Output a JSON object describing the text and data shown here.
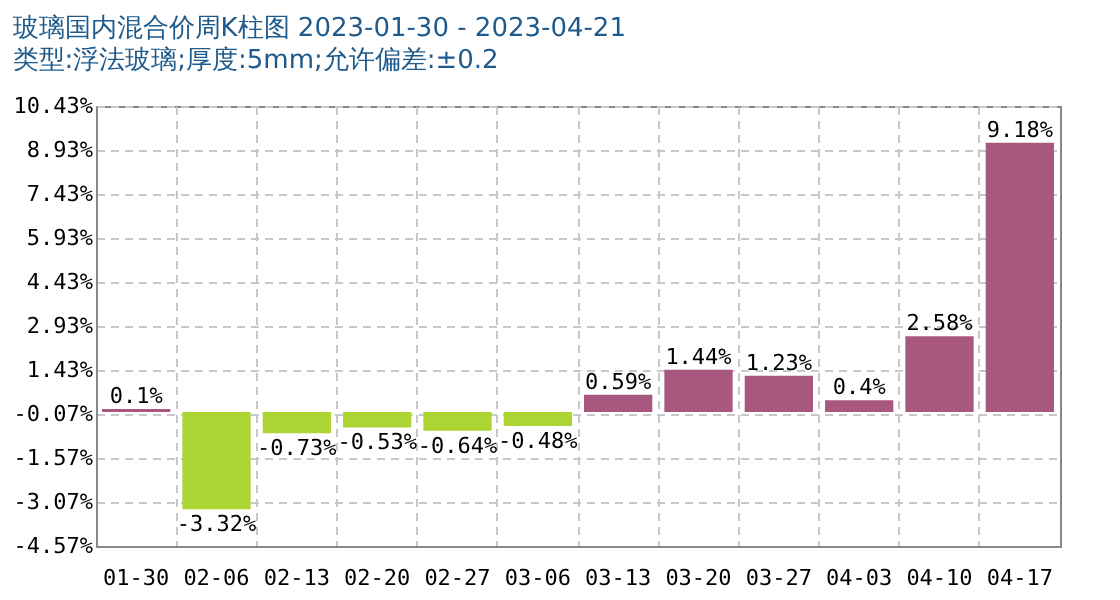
{
  "chart_data": {
    "type": "bar",
    "title": "玻璃国内混合价周K柱图 2023-01-30 - 2023-04-21",
    "subtitle": "类型:浮法玻璃;厚度:5mm;允许偏差:±0.2",
    "categories": [
      "01-30",
      "02-06",
      "02-13",
      "02-20",
      "02-27",
      "03-06",
      "03-13",
      "03-20",
      "03-27",
      "04-03",
      "04-10",
      "04-17"
    ],
    "values": [
      0.1,
      -3.32,
      -0.73,
      -0.53,
      -0.64,
      -0.48,
      0.59,
      1.44,
      1.23,
      0.4,
      2.58,
      9.18
    ],
    "value_labels": [
      "0.1%",
      "-3.32%",
      "-0.73%",
      "-0.53%",
      "-0.64%",
      "-0.48%",
      "0.59%",
      "1.44%",
      "1.23%",
      "0.4%",
      "2.58%",
      "9.18%"
    ],
    "colors": [
      "#a8577f",
      "#acd432",
      "#acd432",
      "#acd432",
      "#acd432",
      "#acd432",
      "#a8577f",
      "#a8577f",
      "#a8577f",
      "#a8577f",
      "#a8577f",
      "#a8577f"
    ],
    "ylim": [
      -4.57,
      10.43
    ],
    "yticks": [
      {
        "value": -4.57,
        "label": "-4.57%"
      },
      {
        "value": -3.07,
        "label": "-3.07%"
      },
      {
        "value": -1.57,
        "label": "-1.57%"
      },
      {
        "value": -0.07,
        "label": "-0.07%"
      },
      {
        "value": 1.43,
        "label": "1.43%"
      },
      {
        "value": 2.93,
        "label": "2.93%"
      },
      {
        "value": 4.43,
        "label": "4.43%"
      },
      {
        "value": 5.93,
        "label": "5.93%"
      },
      {
        "value": 7.43,
        "label": "7.43%"
      },
      {
        "value": 8.93,
        "label": "8.93%"
      },
      {
        "value": 10.43,
        "label": "10.43%"
      }
    ],
    "grid": true
  }
}
